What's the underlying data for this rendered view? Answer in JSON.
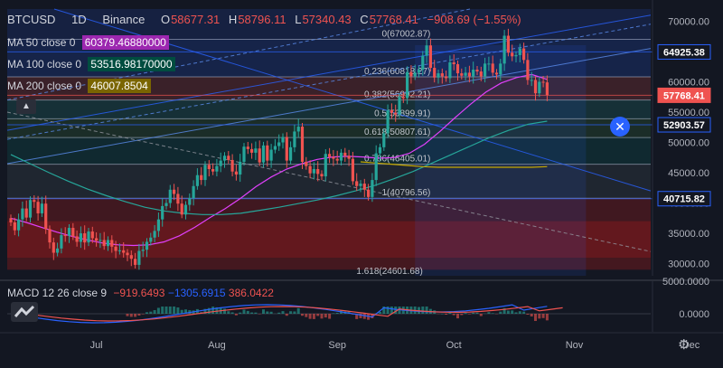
{
  "header": {
    "symbol": "BTCUSD",
    "interval": "1D",
    "exchange": "Binance",
    "open_label": "O",
    "open": "58677.31",
    "high_label": "H",
    "high": "58796.11",
    "low_label": "L",
    "low": "57340.43",
    "close_label": "C",
    "close": "57768.41",
    "change": "−908.69 (−1.55%)"
  },
  "indicators": {
    "ma50": {
      "label": "MA 50 close 0",
      "value": "60379.46880000",
      "color": "#e040fb"
    },
    "ma100": {
      "label": "MA 100 close 0",
      "value": "53516.98170000",
      "color": "#26a69a"
    },
    "ma200": {
      "label": "MA 200 close 0",
      "value": "46007.8504",
      "color": "#c6a800"
    }
  },
  "macd": {
    "label": "MACD 12 26 close 9",
    "macd_value": "−919.6493",
    "signal_value": "−1305.6915",
    "hist_value": "386.0422",
    "macd_color": "#2962ff",
    "signal_color": "#ff6d00",
    "hist_color": "#ef5350",
    "axis_labels": [
      "5000.0000",
      "0.0000"
    ]
  },
  "price_axis": {
    "ticks": [
      "70000.00",
      "65000.00",
      "60000.00",
      "55000.00",
      "50000.00",
      "45000.00",
      "40000.00",
      "35000.00",
      "30000.00"
    ],
    "markers": [
      {
        "label": "64925.38",
        "value": 64925.38,
        "bg": "#131722",
        "fg": "#ffffff",
        "border": "#2962ff"
      },
      {
        "label": "57768.41",
        "value": 57768.41,
        "bg": "#ef5350",
        "fg": "#ffffff",
        "border": "#ef5350"
      },
      {
        "label": "52903.57",
        "value": 52903.57,
        "bg": "#131722",
        "fg": "#ffffff",
        "border": "#2962ff"
      },
      {
        "label": "40715.82",
        "value": 40715.82,
        "bg": "#131722",
        "fg": "#ffffff",
        "border": "#2962ff"
      }
    ]
  },
  "time_axis": {
    "labels": [
      {
        "text": "Jul",
        "day": 22
      },
      {
        "text": "Aug",
        "day": 53
      },
      {
        "text": "Sep",
        "day": 84
      },
      {
        "text": "Oct",
        "day": 114
      },
      {
        "text": "Nov",
        "day": 145
      },
      {
        "text": "Dec",
        "day": 175
      }
    ]
  },
  "fib_levels": [
    {
      "label": "0(67002.87)",
      "value": 67002.87
    },
    {
      "label": "0.236(60818.27)",
      "value": 60818.27
    },
    {
      "label": "0.382(56992.21)",
      "value": 56992.21
    },
    {
      "label": "0.5(53899.91)",
      "value": 53899.91
    },
    {
      "label": "0.618(50807.61)",
      "value": 50807.61
    },
    {
      "label": "0.786(46405.01)",
      "value": 46405.01
    },
    {
      "label": "1(40796.56)",
      "value": 40796.56
    },
    {
      "label": "1.618(24601.68)",
      "value": 24601.68
    }
  ],
  "chart_data": {
    "type": "candlestick",
    "title": "BTCUSD 1D Binance",
    "x_unit": "days since Jun 9",
    "ylim": [
      28000,
      72000
    ],
    "candles_close": [
      36800,
      35500,
      37300,
      39100,
      37600,
      40500,
      40200,
      38300,
      39900,
      35700,
      33500,
      31800,
      32500,
      34700,
      34600,
      35900,
      34500,
      33600,
      35000,
      33500,
      35300,
      34200,
      33800,
      33900,
      32900,
      33900,
      32800,
      32100,
      32200,
      31800,
      31400,
      30800,
      29800,
      32100,
      32300,
      33600,
      34300,
      35400,
      37300,
      39500,
      40000,
      42200,
      41500,
      39900,
      38100,
      39700,
      40800,
      42800,
      44600,
      43800,
      46300,
      45600,
      45200,
      46100,
      47000,
      47800,
      47100,
      45200,
      44700,
      46800,
      49300,
      48900,
      48300,
      49000,
      46700,
      49500,
      47000,
      48800,
      49400,
      50000,
      50900,
      47000,
      49200,
      51800,
      52600,
      46800,
      46100,
      44900,
      45600,
      44800,
      44400,
      48100,
      47600,
      47300,
      47000,
      48300,
      47800,
      47300,
      43600,
      42800,
      43200,
      42200,
      41000,
      43800,
      48200,
      49200,
      51500,
      55300,
      54900,
      54600,
      57500,
      57300,
      61600,
      60900,
      61500,
      62000,
      64300,
      66000,
      62300,
      60700,
      61400,
      60900,
      60600,
      63200,
      62900,
      61400,
      61000,
      61500,
      60900,
      62000,
      61700,
      60900,
      63000,
      63000,
      61500,
      61200,
      63000,
      67600,
      64800,
      64200,
      64400,
      65500,
      63600,
      60300,
      60300,
      58100,
      60000,
      59900,
      57800
    ],
    "candles_start": 0,
    "moving_averages": [
      {
        "name": "MA 50",
        "color": "#e040fb",
        "values": [
          37500,
          36800,
          36000,
          35200,
          34500,
          33900,
          33400,
          33100,
          33000,
          33100,
          33600,
          34600,
          36000,
          37600,
          39100,
          40800,
          42700,
          44300,
          45600,
          46500,
          47200,
          47600,
          47700,
          47600,
          47400,
          47500,
          48200,
          49700,
          51800,
          54100,
          56300,
          58300,
          59800,
          60700,
          61200,
          60400
        ]
      },
      {
        "name": "MA 100",
        "color": "#26a69a",
        "values": [
          48000,
          46500,
          45000,
          43600,
          42300,
          41200,
          40200,
          39300,
          38700,
          38300,
          38100,
          38100,
          38300,
          38800,
          39300,
          39900,
          40500,
          41200,
          42000,
          42900,
          44000,
          45200,
          46600,
          48000,
          49400,
          50800,
          52000,
          53000,
          53500
        ]
      },
      {
        "name": "MA 200",
        "color": "#c6a800",
        "values": [
          46800,
          46600,
          46400,
          46200,
          46000,
          45900,
          45900,
          45900,
          45900,
          45900,
          45900,
          45900,
          46000
        ]
      }
    ]
  }
}
